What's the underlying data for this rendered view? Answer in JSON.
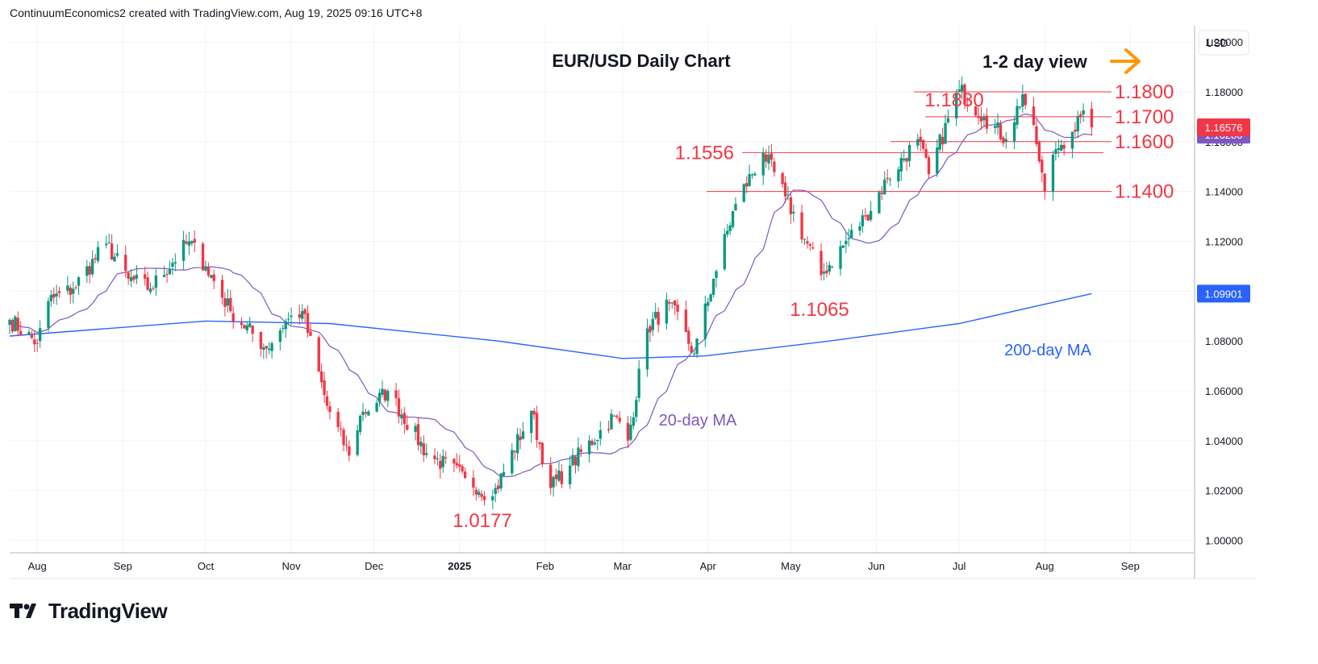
{
  "header": {
    "attribution": "ContinuumEconomics2 created with TradingView.com, Aug 19, 2025 09:16 UTC+8"
  },
  "branding": {
    "logo_text": "TradingView"
  },
  "colors": {
    "up": "#089981",
    "down": "#f23645",
    "level": "#f23645",
    "ma20": "#7e57c2",
    "ma200": "#2962ff",
    "arrow": "#ff9800",
    "last_price_bg": "#f23645",
    "ma200_label_bg": "#2962ff",
    "text": "#131722",
    "grid": "#f0f3fa",
    "axis_text": "#131722",
    "ma200_text": "#2962ff",
    "ma20_text": "#7e57c2"
  },
  "chart_data": {
    "type": "candlestick",
    "title": "EUR/USD Daily Chart",
    "view_note": "1-2 day view",
    "currency": "USD",
    "ylim": [
      0.995,
      1.2065
    ],
    "y_ticks": [
      "1.00000",
      "1.02000",
      "1.04000",
      "1.06000",
      "1.08000",
      "1.10000",
      "1.12000",
      "1.14000",
      "1.16000",
      "1.18000",
      "1.20000"
    ],
    "x_ticks": [
      "Aug",
      "Sep",
      "Oct",
      "Nov",
      "Dec",
      "2025",
      "Feb",
      "Mar",
      "Apr",
      "May",
      "Jun",
      "Jul",
      "Aug",
      "Sep"
    ],
    "x_tick_dates": [
      "2024-08-01",
      "2024-09-01",
      "2024-10-01",
      "2024-11-01",
      "2024-12-01",
      "2025-01-01",
      "2025-02-01",
      "2025-03-01",
      "2025-04-01",
      "2025-05-01",
      "2025-06-01",
      "2025-07-01",
      "2025-08-01",
      "2025-09-01"
    ],
    "anchors": [
      [
        "2024-07-22",
        1.0885
      ],
      [
        "2024-08-01",
        1.079
      ],
      [
        "2024-08-05",
        1.096
      ],
      [
        "2024-08-14",
        1.101
      ],
      [
        "2024-08-26",
        1.119
      ],
      [
        "2024-09-03",
        1.105
      ],
      [
        "2024-09-11",
        1.101
      ],
      [
        "2024-09-25",
        1.12
      ],
      [
        "2024-10-01",
        1.11
      ],
      [
        "2024-10-10",
        1.092
      ],
      [
        "2024-10-23",
        1.077
      ],
      [
        "2024-10-30",
        1.088
      ],
      [
        "2024-11-05",
        1.092
      ],
      [
        "2024-11-14",
        1.054
      ],
      [
        "2024-11-22",
        1.034
      ],
      [
        "2024-11-26",
        1.05
      ],
      [
        "2024-12-06",
        1.06
      ],
      [
        "2024-12-20",
        1.035
      ],
      [
        "2025-01-03",
        1.025
      ],
      [
        "2025-01-13",
        1.0177
      ],
      [
        "2025-01-27",
        1.052
      ],
      [
        "2025-02-03",
        1.021
      ],
      [
        "2025-02-10",
        1.03
      ],
      [
        "2025-02-26",
        1.05
      ],
      [
        "2025-03-03",
        1.04
      ],
      [
        "2025-03-10",
        1.085
      ],
      [
        "2025-03-18",
        1.095
      ],
      [
        "2025-03-27",
        1.075
      ],
      [
        "2025-04-03",
        1.105
      ],
      [
        "2025-04-11",
        1.135
      ],
      [
        "2025-04-21",
        1.1556
      ],
      [
        "2025-04-29",
        1.138
      ],
      [
        "2025-05-12",
        1.1065
      ],
      [
        "2025-05-28",
        1.13
      ],
      [
        "2025-06-05",
        1.145
      ],
      [
        "2025-06-16",
        1.161
      ],
      [
        "2025-06-20",
        1.147
      ],
      [
        "2025-07-01",
        1.181
      ],
      [
        "2025-07-10",
        1.17
      ],
      [
        "2025-07-18",
        1.161
      ],
      [
        "2025-07-24",
        1.179
      ],
      [
        "2025-07-29",
        1.159
      ],
      [
        "2025-08-01",
        1.14
      ],
      [
        "2025-08-05",
        1.157
      ],
      [
        "2025-08-11",
        1.164
      ],
      [
        "2025-08-14",
        1.17
      ],
      [
        "2025-08-18",
        1.166
      ]
    ],
    "levels": [
      {
        "label": "1.1830",
        "value": 1.183,
        "type": "high-marker"
      },
      {
        "label": "1.1800",
        "value": 1.18,
        "type": "resistance"
      },
      {
        "label": "1.1700",
        "value": 1.17,
        "type": "resistance"
      },
      {
        "label": "1.1600",
        "value": 1.16,
        "type": "support"
      },
      {
        "label": "1.1556",
        "value": 1.1556,
        "type": "support"
      },
      {
        "label": "1.1400",
        "value": 1.14,
        "type": "support"
      },
      {
        "label": "1.1065",
        "value": 1.1065,
        "type": "low-marker"
      },
      {
        "label": "1.0177",
        "value": 1.0177,
        "type": "low-marker"
      }
    ],
    "last_price_label": "1.16576",
    "last_price": 1.16576,
    "ma20_value_label": "1.16280",
    "ma20_last": 1.1628,
    "ma200_value_label": "1.09901",
    "ma200_last": 1.09901,
    "ma200_anchors": [
      [
        "2024-07-22",
        1.082
      ],
      [
        "2024-10-01",
        1.088
      ],
      [
        "2024-11-15",
        1.087
      ],
      [
        "2025-01-15",
        1.08
      ],
      [
        "2025-03-01",
        1.073
      ],
      [
        "2025-03-31",
        1.074
      ],
      [
        "2025-05-15",
        1.08
      ],
      [
        "2025-07-01",
        1.087
      ],
      [
        "2025-08-18",
        1.099
      ]
    ],
    "annotations": [
      {
        "text": "20-day MA",
        "series": "ma20"
      },
      {
        "text": "200-day MA",
        "series": "ma200"
      }
    ]
  }
}
